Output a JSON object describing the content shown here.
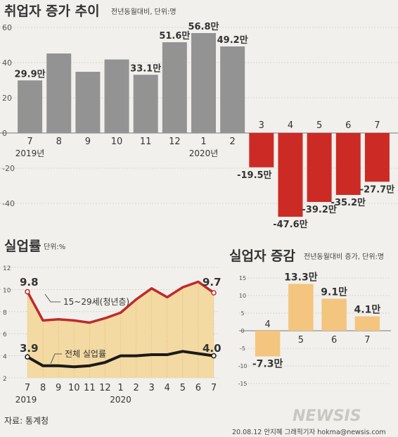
{
  "chart_data": [
    {
      "type": "bar",
      "title": "취업자 증가 추이",
      "subtitle": "전년동월대비, 단위:명",
      "categories": [
        "7",
        "8",
        "9",
        "10",
        "11",
        "12",
        "1",
        "2",
        "3",
        "4",
        "5",
        "6",
        "7"
      ],
      "year_labels": [
        {
          "index": 0,
          "text": "2019년"
        },
        {
          "index": 6,
          "text": "2020년"
        }
      ],
      "values": [
        29.9,
        45.2,
        34.8,
        41.8,
        33.1,
        51.6,
        56.8,
        49.2,
        -19.5,
        -47.6,
        -39.2,
        -35.2,
        -27.7
      ],
      "value_labels": [
        "29.9만",
        "",
        "",
        "",
        "33.1만",
        "51.6만",
        "56.8만",
        "49.2만",
        "-19.5만",
        "-47.6만",
        "-39.2만",
        "-35.2만",
        "-27.7만"
      ],
      "yticks": [
        60,
        40,
        20,
        0,
        -20,
        -40
      ],
      "ylim": [
        -50,
        62
      ],
      "colors": {
        "positive": "#939393",
        "negative": "#cc2a25"
      }
    },
    {
      "type": "line",
      "title": "실업률",
      "subtitle": "단위:%",
      "categories": [
        "7",
        "8",
        "9",
        "10",
        "11",
        "12",
        "1",
        "2",
        "3",
        "4",
        "5",
        "6",
        "7"
      ],
      "year_labels": [
        {
          "index": 0,
          "text": "2019"
        },
        {
          "index": 6,
          "text": "2020"
        }
      ],
      "series": [
        {
          "name": "15~29세(청년층)",
          "values": [
            9.8,
            7.2,
            7.3,
            7.2,
            7.0,
            7.4,
            7.9,
            9.1,
            10.1,
            9.3,
            10.2,
            10.7,
            9.7
          ],
          "color": "#be2a2c"
        },
        {
          "name": "전체 실업률",
          "values": [
            3.9,
            3.1,
            3.1,
            3.0,
            3.1,
            3.4,
            4.0,
            4.0,
            4.1,
            4.1,
            4.4,
            4.2,
            4.0
          ],
          "color": "#1a1a1a"
        }
      ],
      "endpoint_labels": {
        "first": [
          "9.8",
          "3.9"
        ],
        "last": [
          "9.7",
          "4.0"
        ]
      },
      "yticks": [
        12,
        10,
        8,
        6,
        4,
        2
      ],
      "ylim": [
        2,
        12
      ],
      "fill": "#f3d9a2"
    },
    {
      "type": "bar",
      "title": "실업자 증감",
      "subtitle": "전년동월대비 증가, 단위:명",
      "categories": [
        "4",
        "5",
        "6",
        "7"
      ],
      "values": [
        -7.3,
        13.3,
        9.1,
        4.1
      ],
      "value_labels": [
        "-7.3만",
        "13.3만",
        "9.1만",
        "4.1만"
      ],
      "yticks": [
        15,
        10,
        5,
        0,
        -5,
        -10,
        -15
      ],
      "ylim": [
        -15,
        15
      ],
      "color": "#f3c57e"
    }
  ],
  "source": "자료: 통계청",
  "credit": "20.08.12 안지혜 그래픽기자 hokma@newsis.com",
  "watermark": "NEWSIS"
}
